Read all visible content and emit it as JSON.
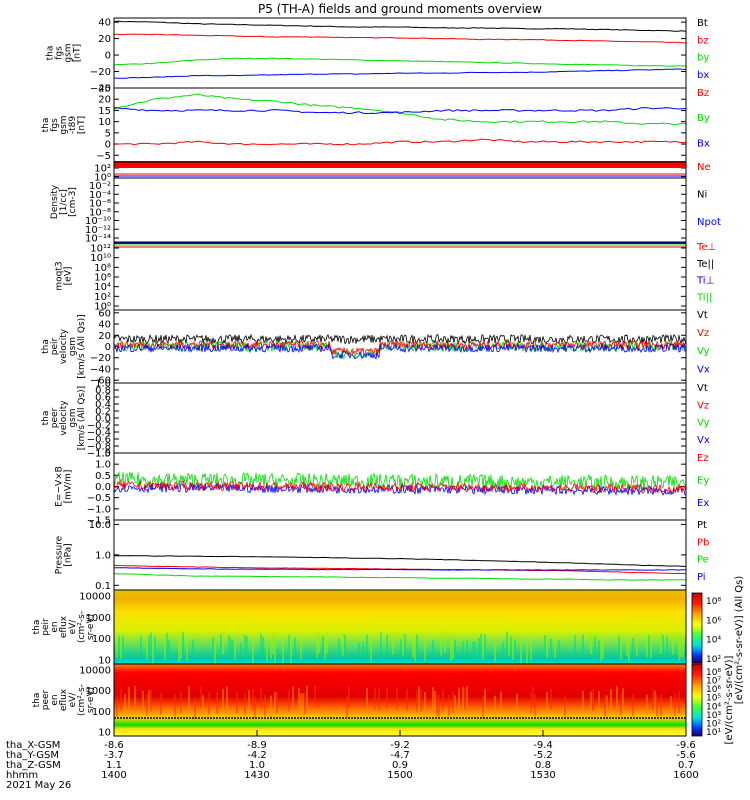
{
  "title": "P5 (TH-A) fields and ground moments overview",
  "colors": {
    "black": "#000000",
    "red": "#ff0000",
    "green": "#00dd00",
    "blue": "#0000ff"
  },
  "chart_data": [
    {
      "type": "line",
      "ylabel": [
        "tha",
        "fgs",
        "gsm",
        "[nT]"
      ],
      "ylim": [
        -40,
        45
      ],
      "ticks": [
        "40",
        "20",
        "0",
        "−20",
        "−40"
      ],
      "tickvals": [
        40,
        20,
        0,
        -20,
        -40
      ],
      "legend": [
        "Bt",
        "bz",
        "by",
        "bx"
      ],
      "series": [
        {
          "name": "Bt",
          "color": "black",
          "values": [
            41,
            40,
            38,
            37,
            36,
            35,
            34,
            34,
            33,
            33,
            32,
            32,
            31,
            30,
            29
          ]
        },
        {
          "name": "bz",
          "color": "red",
          "values": [
            25,
            25,
            24,
            23,
            22,
            22,
            21,
            21,
            20,
            19,
            19,
            18,
            17,
            16,
            15
          ]
        },
        {
          "name": "by",
          "color": "green",
          "values": [
            -12,
            -10,
            -6,
            -4,
            -4,
            -5,
            -6,
            -7,
            -8,
            -9,
            -10,
            -11,
            -12,
            -13,
            -13
          ]
        },
        {
          "name": "bx",
          "color": "blue",
          "values": [
            -28,
            -27,
            -25,
            -25,
            -24,
            -23,
            -23,
            -22,
            -22,
            -21,
            -21,
            -20,
            -19,
            -18,
            -17
          ]
        }
      ]
    },
    {
      "type": "line",
      "ylabel": [
        "tha",
        "fgs",
        "gsm",
        "-t89",
        "[nT]"
      ],
      "ylim": [
        -8,
        25
      ],
      "ticks": [
        "25",
        "20",
        "15",
        "10",
        "5",
        "0",
        "−5"
      ],
      "tickvals": [
        25,
        20,
        15,
        10,
        5,
        0,
        -5
      ],
      "legend": [
        "Bz",
        "By",
        "Bx"
      ],
      "series": [
        {
          "name": "Bz",
          "color": "red",
          "values": [
            0,
            0,
            1,
            0,
            0,
            0,
            0,
            1,
            1,
            2,
            1,
            1,
            1,
            1,
            1
          ]
        },
        {
          "name": "By",
          "color": "green",
          "values": [
            16,
            20,
            22,
            20,
            19,
            17,
            16,
            14,
            11,
            10,
            10,
            10,
            10,
            9,
            9
          ]
        },
        {
          "name": "Bx",
          "color": "blue",
          "values": [
            16,
            15,
            15,
            15,
            15,
            14,
            14,
            14,
            15,
            15,
            15,
            15,
            15,
            16,
            16
          ]
        }
      ]
    },
    {
      "type": "line",
      "ylabel": [
        "Density",
        "[1/cc]",
        "[cm-3]"
      ],
      "ticks": [
        "10²",
        "10⁰",
        "10⁻²",
        "10⁻⁴",
        "10⁻⁶",
        "10⁻⁸",
        "10⁻¹⁰",
        "10⁻¹²",
        "10⁻¹⁴"
      ],
      "legend": [
        "Ne",
        "Ni",
        "Npot"
      ],
      "log": true
    },
    {
      "type": "line",
      "ylabel": [
        "moqt3",
        "[eV]"
      ],
      "ticks": [
        "10¹²",
        "10¹⁰",
        "10⁸",
        "10⁶",
        "10⁴",
        "10²",
        "10⁰"
      ],
      "legend": [
        "Te⊥",
        "Te||",
        "Ti⊥",
        "Ti||"
      ],
      "log": true
    },
    {
      "type": "line",
      "ylabel": [
        "tha",
        "peir",
        "velocity",
        "gsm",
        "[km/s (All Qs)]"
      ],
      "ylim": [
        -65,
        65
      ],
      "ticks": [
        "60",
        "40",
        "20",
        "0",
        "−20",
        "−40",
        "−60"
      ],
      "tickvals": [
        60,
        40,
        20,
        0,
        -20,
        -40,
        -60
      ],
      "legend": [
        "Vt",
        "Vz",
        "Vy",
        "Vx"
      ]
    },
    {
      "type": "line",
      "ylabel": [
        "tha",
        "peer",
        "velocity",
        "gsm",
        "[km/s (All Qs)]"
      ],
      "ylim": [
        -1,
        1
      ],
      "ticks": [
        "1.0",
        "0.8",
        "0.6",
        "0.4",
        "0.2",
        "0.0",
        "−0.2",
        "−0.4",
        "−0.6",
        "−0.8",
        "−1.0"
      ],
      "tickvals": [
        1,
        0.8,
        0.6,
        0.4,
        0.2,
        0,
        -0.2,
        -0.4,
        -0.6,
        -0.8,
        -1
      ],
      "legend": [
        "Vt",
        "Vz",
        "Vy",
        "Vx"
      ]
    },
    {
      "type": "line",
      "ylabel": [
        "E=−V×B",
        "[mV/m]"
      ],
      "ylim": [
        -1.5,
        1.5
      ],
      "ticks": [
        "1.5",
        "1.0",
        "0.5",
        "0.0",
        "−0.5",
        "−1.0",
        "−1.5"
      ],
      "tickvals": [
        1.5,
        1,
        0.5,
        0,
        -0.5,
        -1,
        -1.5
      ],
      "legend": [
        "Ez",
        "Ey",
        "Ex"
      ]
    },
    {
      "type": "line",
      "ylabel": [
        "Pressure",
        "[nPa]"
      ],
      "log": true,
      "ticks": [
        "10.0",
        "1.0",
        "0.1"
      ],
      "tickvals": [
        10,
        1,
        0.1
      ],
      "legend": [
        "Pt",
        "Pb",
        "Pe",
        "Pi"
      ],
      "series": [
        {
          "name": "Pt",
          "color": "black",
          "values": [
            0.95,
            0.92,
            0.9,
            0.88,
            0.85,
            0.82,
            0.78,
            0.75,
            0.7,
            0.65,
            0.6,
            0.55,
            0.5,
            0.45,
            0.42
          ]
        },
        {
          "name": "Pb",
          "color": "red",
          "values": [
            0.45,
            0.42,
            0.4,
            0.38,
            0.37,
            0.36,
            0.35,
            0.34,
            0.33,
            0.32,
            0.31,
            0.3,
            0.28,
            0.26,
            0.24
          ]
        },
        {
          "name": "Pe",
          "color": "green",
          "values": [
            0.24,
            0.22,
            0.2,
            0.2,
            0.19,
            0.19,
            0.18,
            0.18,
            0.17,
            0.17,
            0.16,
            0.16,
            0.15,
            0.15,
            0.15
          ]
        },
        {
          "name": "Pi",
          "color": "blue",
          "values": [
            0.38,
            0.36,
            0.35,
            0.34,
            0.34,
            0.33,
            0.33,
            0.33,
            0.32,
            0.32,
            0.32,
            0.32,
            0.32,
            0.32,
            0.32
          ]
        }
      ]
    },
    {
      "type": "heatmap",
      "ylabel": [
        "tha",
        "peir",
        "en",
        "eflux",
        "eV/",
        "(cm²-s-",
        "sr-eV)"
      ],
      "ticks": [
        "10000",
        "1000",
        "100",
        "10"
      ]
    },
    {
      "type": "heatmap",
      "ylabel": [
        "tha",
        "peer",
        "en",
        "eflux",
        "eV/",
        "(cm²-s-",
        "sr-eV)"
      ],
      "ticks": [
        "10000",
        "1000",
        "100",
        "10"
      ]
    }
  ],
  "colorbar": {
    "top": {
      "label": "[eV/(cm²-s-sr-eV)] (All Qs)",
      "ticks": [
        "10⁸",
        "10⁶",
        "10⁴",
        "10²"
      ]
    },
    "bottom": {
      "label": "[eV/(cm²-s-sr-eV)]",
      "ticks": [
        "10⁸",
        "10⁷",
        "10⁶",
        "10⁵",
        "10⁴",
        "10³",
        "10²",
        "10¹"
      ]
    }
  },
  "xaxis": {
    "row_labels": [
      "tha_X-GSM",
      "tha_Y-GSM",
      "tha_Z-GSM",
      "hhmm",
      "2021 May 26"
    ],
    "columns": [
      [
        "-8.6",
        "-3.7",
        "1.1",
        "1400"
      ],
      [
        "-8.9",
        "-4.2",
        "1.0",
        "1430"
      ],
      [
        "-9.2",
        "-4.7",
        "0.9",
        "1500"
      ],
      [
        "-9.4",
        "-5.2",
        "0.8",
        "1530"
      ],
      [
        "-9.6",
        "-5.6",
        "0.7",
        "1600"
      ]
    ]
  }
}
